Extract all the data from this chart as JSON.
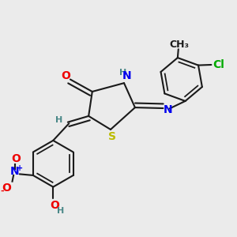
{
  "background_color": "#ebebeb",
  "atom_colors": {
    "C": "#1a1a1a",
    "H": "#4a8888",
    "N": "#0000ee",
    "O": "#ee0000",
    "S": "#bbbb00",
    "Cl": "#00aa00"
  },
  "bond_color": "#1a1a1a",
  "bond_width": 1.5,
  "font_size_atoms": 10,
  "font_size_small": 8,
  "figsize": [
    3.0,
    3.0
  ],
  "dpi": 100
}
